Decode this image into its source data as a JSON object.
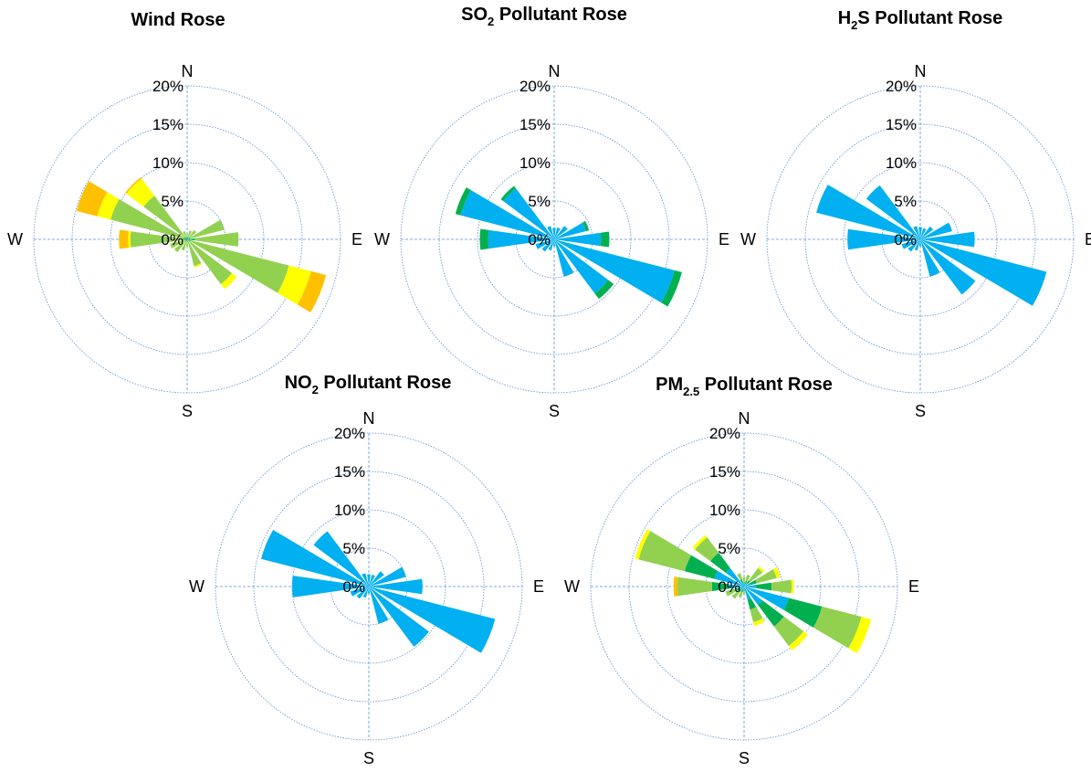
{
  "figure": {
    "ring_labels": [
      "0%",
      "5%",
      "10%",
      "15%",
      "20%"
    ],
    "compass": {
      "n": "N",
      "e": "E",
      "s": "S",
      "w": "W"
    }
  },
  "chart_data": [
    {
      "type": "polar-bar",
      "title": "Wind Rose",
      "title_sub": "",
      "title_rest": "",
      "rmax": 20,
      "directions": [
        "N",
        "NNE",
        "NE",
        "ENE",
        "E",
        "ESE",
        "SE",
        "SSE",
        "S",
        "SSW",
        "SW",
        "WSW",
        "W",
        "WNW",
        "NW",
        "NNW"
      ],
      "segment_colors": [
        "#00b0f0",
        "#00b050",
        "#92d050",
        "#ffff00",
        "#ffc000",
        "#ff7a00"
      ],
      "stacks": [
        [
          0,
          0.2,
          0.5,
          0,
          0,
          0
        ],
        [
          0,
          0.3,
          0.9,
          0,
          0,
          0
        ],
        [
          0,
          0.3,
          1.2,
          0,
          0,
          0
        ],
        [
          0,
          0.4,
          4.6,
          0,
          0,
          0
        ],
        [
          0,
          1.0,
          5.7,
          0,
          0,
          0
        ],
        [
          0,
          0.5,
          13.2,
          3.0,
          2.0,
          0
        ],
        [
          0,
          0.3,
          7.0,
          0.8,
          0,
          0
        ],
        [
          0,
          0.3,
          3.3,
          0.2,
          0,
          0
        ],
        [
          0,
          0.2,
          0.7,
          0,
          0,
          0
        ],
        [
          0,
          0.3,
          1.2,
          0,
          0,
          0
        ],
        [
          0,
          0.3,
          1.8,
          0,
          0,
          0
        ],
        [
          0,
          0.3,
          2.0,
          0,
          0,
          0
        ],
        [
          0,
          0.6,
          6.8,
          0.3,
          1.2,
          0
        ],
        [
          0,
          0.5,
          9.8,
          1.8,
          2.8,
          0
        ],
        [
          0,
          0.4,
          6.7,
          2.8,
          0.2,
          0
        ],
        [
          0,
          0.3,
          0.8,
          0,
          0,
          0
        ]
      ]
    },
    {
      "type": "polar-bar",
      "title": "SO",
      "title_sub": "2",
      "title_rest": "  Pollutant Rose",
      "rmax": 20,
      "directions": [
        "N",
        "NNE",
        "NE",
        "ENE",
        "E",
        "ESE",
        "SE",
        "SSE",
        "S",
        "SSW",
        "SW",
        "WSW",
        "W",
        "WNW",
        "NW",
        "NNW"
      ],
      "segment_colors": [
        "#00b0f0",
        "#00b050",
        "#92d050",
        "#ffff00",
        "#ffc000",
        "#ff7a00"
      ],
      "stacks": [
        [
          1.5,
          0,
          0,
          0,
          0,
          0
        ],
        [
          1.6,
          0,
          0,
          0,
          0,
          0
        ],
        [
          2.2,
          0,
          0,
          0,
          0,
          0
        ],
        [
          4.3,
          0.4,
          0,
          0,
          0,
          0
        ],
        [
          6.1,
          1.1,
          0,
          0,
          0,
          0
        ],
        [
          16.2,
          1.0,
          0,
          0,
          0,
          0
        ],
        [
          8.8,
          0.9,
          0,
          0,
          0,
          0
        ],
        [
          5.0,
          0,
          0,
          0,
          0,
          0
        ],
        [
          0.9,
          0,
          0,
          0,
          0,
          0
        ],
        [
          1.5,
          0,
          0,
          0,
          0,
          0
        ],
        [
          2.0,
          0,
          0,
          0,
          0,
          0
        ],
        [
          2.5,
          0,
          0,
          0,
          0,
          0
        ],
        [
          8.6,
          1.1,
          0,
          0,
          0,
          0
        ],
        [
          12.6,
          0.7,
          0,
          0,
          0,
          0
        ],
        [
          8.3,
          0.4,
          0,
          0,
          0,
          0
        ],
        [
          1.8,
          0,
          0,
          0,
          0,
          0
        ]
      ]
    },
    {
      "type": "polar-bar",
      "title": "H",
      "title_sub": "2",
      "title_rest": "S Pollutant Rose",
      "rmax": 20,
      "directions": [
        "N",
        "NNE",
        "NE",
        "ENE",
        "E",
        "ESE",
        "SE",
        "SSE",
        "S",
        "SSW",
        "SW",
        "WSW",
        "W",
        "WNW",
        "NW",
        "NNW"
      ],
      "segment_colors": [
        "#00b0f0",
        "#00b050",
        "#92d050",
        "#ffff00",
        "#ffc000",
        "#ff7a00"
      ],
      "stacks": [
        [
          1.6,
          0,
          0,
          0,
          0,
          0
        ],
        [
          1.5,
          0,
          0,
          0,
          0,
          0
        ],
        [
          2.1,
          0,
          0,
          0,
          0,
          0
        ],
        [
          4.3,
          0,
          0,
          0,
          0,
          0
        ],
        [
          7.1,
          0,
          0,
          0,
          0,
          0
        ],
        [
          17.0,
          0,
          0,
          0,
          0,
          0
        ],
        [
          9.0,
          0,
          0,
          0,
          0,
          0
        ],
        [
          5.0,
          0,
          0,
          0,
          0,
          0
        ],
        [
          0.9,
          0,
          0,
          0,
          0,
          0
        ],
        [
          1.5,
          0,
          0,
          0,
          0,
          0
        ],
        [
          2.0,
          0,
          0,
          0,
          0,
          0
        ],
        [
          2.5,
          0,
          0,
          0,
          0,
          0
        ],
        [
          9.5,
          0,
          0,
          0,
          0,
          0
        ],
        [
          14.0,
          0,
          0,
          0,
          0,
          0
        ],
        [
          8.8,
          0,
          0,
          0,
          0,
          0
        ],
        [
          1.8,
          0,
          0,
          0,
          0,
          0
        ]
      ]
    },
    {
      "type": "polar-bar",
      "title": "NO",
      "title_sub": "2",
      "title_rest": " Pollutant Rose",
      "rmax": 20,
      "directions": [
        "N",
        "NNE",
        "NE",
        "ENE",
        "E",
        "ESE",
        "SE",
        "SSE",
        "S",
        "SSW",
        "SW",
        "WSW",
        "W",
        "WNW",
        "NW",
        "NNW"
      ],
      "segment_colors": [
        "#00b0f0",
        "#00b050",
        "#92d050",
        "#ffff00",
        "#ffc000",
        "#ff7a00"
      ],
      "stacks": [
        [
          1.6,
          0,
          0,
          0,
          0,
          0
        ],
        [
          1.6,
          0,
          0,
          0,
          0,
          0
        ],
        [
          2.5,
          0,
          0,
          0,
          0,
          0
        ],
        [
          5.0,
          0,
          0,
          0,
          0,
          0
        ],
        [
          7.0,
          0,
          0,
          0,
          0,
          0
        ],
        [
          17.0,
          0,
          0,
          0,
          0,
          0
        ],
        [
          9.8,
          0,
          0,
          0,
          0,
          0
        ],
        [
          5.0,
          0,
          0,
          0,
          0,
          0
        ],
        [
          0.9,
          0,
          0,
          0,
          0,
          0
        ],
        [
          1.5,
          0,
          0,
          0,
          0,
          0
        ],
        [
          2.0,
          0,
          0,
          0,
          0,
          0
        ],
        [
          2.5,
          0,
          0,
          0,
          0,
          0
        ],
        [
          10.0,
          0,
          0,
          0,
          0,
          0
        ],
        [
          14.5,
          0,
          0,
          0,
          0,
          0
        ],
        [
          9.0,
          0,
          0,
          0,
          0,
          0
        ],
        [
          1.8,
          0,
          0,
          0,
          0,
          0
        ]
      ]
    },
    {
      "type": "polar-bar",
      "title": "PM",
      "title_sub": "2.5",
      "title_rest": " Pollutant Rose",
      "rmax": 20,
      "directions": [
        "N",
        "NNE",
        "NE",
        "ENE",
        "E",
        "ESE",
        "SE",
        "SSE",
        "S",
        "SSW",
        "SW",
        "WSW",
        "W",
        "WNW",
        "NW",
        "NNW"
      ],
      "segment_colors": [
        "#00b0f0",
        "#00b050",
        "#92d050",
        "#ffff00",
        "#ffc000",
        "#ff7a00"
      ],
      "stacks": [
        [
          0.3,
          0.3,
          0.6,
          0,
          0,
          0
        ],
        [
          0.4,
          0.4,
          0.8,
          0,
          0,
          0
        ],
        [
          0.5,
          0.5,
          2.0,
          0.3,
          0,
          0
        ],
        [
          0.8,
          0.9,
          2.7,
          0.5,
          0,
          0
        ],
        [
          1.6,
          2.0,
          2.6,
          0.3,
          0,
          0
        ],
        [
          6.0,
          4.5,
          5.3,
          1.3,
          0,
          0
        ],
        [
          3.0,
          3.5,
          3.2,
          0.7,
          0,
          0
        ],
        [
          1.8,
          1.3,
          1.7,
          0.5,
          0,
          0
        ],
        [
          0.3,
          0.3,
          0.4,
          0,
          0,
          0
        ],
        [
          0.4,
          0.4,
          0.7,
          0,
          0,
          0
        ],
        [
          0.5,
          0.5,
          1.0,
          0,
          0,
          0
        ],
        [
          0.6,
          0.6,
          1.3,
          0,
          0,
          0
        ],
        [
          2.0,
          2.2,
          4.5,
          0,
          0.5,
          0
        ],
        [
          4.0,
          4.0,
          6.2,
          0.5,
          0,
          0
        ],
        [
          3.0,
          2.5,
          2.5,
          0.4,
          0,
          0
        ],
        [
          0.5,
          0.5,
          0.8,
          0,
          0,
          0
        ]
      ]
    }
  ]
}
